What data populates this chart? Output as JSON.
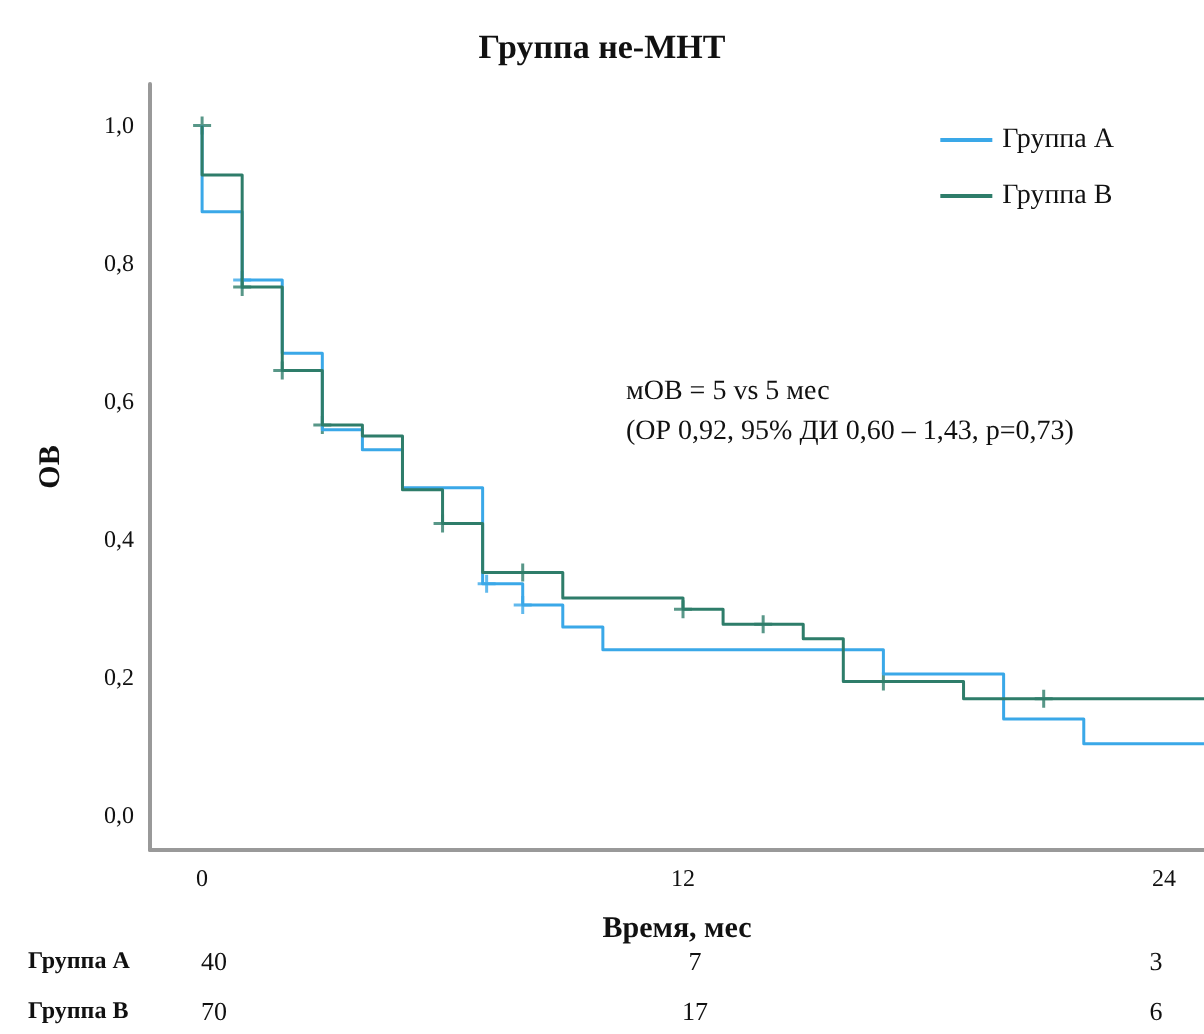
{
  "chart_data": {
    "type": "step",
    "title": "Группа не-МНТ",
    "xlabel": "Время, мес",
    "ylabel": "ОВ",
    "xlim": [
      -1.3,
      25
    ],
    "xticks": [
      0,
      12,
      24
    ],
    "ylim": [
      -0.05,
      1.06
    ],
    "yticks": [
      {
        "value": 0,
        "label": "0,0"
      },
      {
        "value": 0.2,
        "label": "0,2"
      },
      {
        "value": 0.4,
        "label": "0,4"
      },
      {
        "value": 0.6,
        "label": "0,6"
      },
      {
        "value": 0.8,
        "label": "0,8"
      },
      {
        "value": 1,
        "label": "1,0"
      }
    ],
    "legend": "top right",
    "grid": false,
    "line_style": "solid",
    "annotations": [
      "мОВ = 5 vs 5 мес\n(ОР 0,92, 95% ДИ 0,60 – 1,43, p=0,73)",
      "40",
      "7",
      "3",
      "70",
      "17",
      "6"
    ],
    "series": [
      {
        "name": "Группа A",
        "color": "#3aa8e8",
        "x": [
          0,
          0,
          1,
          2,
          3,
          4,
          5,
          7,
          8,
          9,
          10,
          17,
          20,
          22,
          25
        ],
        "values": [
          1.0,
          0.875,
          0.776,
          0.67,
          0.559,
          0.53,
          0.475,
          0.336,
          0.305,
          0.273,
          0.24,
          0.205,
          0.14,
          0.104,
          0.104
        ]
      },
      {
        "name": "Группа B",
        "color": "#2e7d6a",
        "x": [
          0,
          0,
          1,
          2,
          3,
          4,
          5,
          6,
          7,
          9,
          12,
          13,
          15,
          16,
          19,
          25
        ],
        "values": [
          1.0,
          0.928,
          0.766,
          0.645,
          0.566,
          0.55,
          0.472,
          0.423,
          0.352,
          0.315,
          0.299,
          0.277,
          0.256,
          0.194,
          0.169,
          0.169
        ]
      },
      {
        "type": "scatter",
        "marker": "cross",
        "color": "#3aa8e8",
        "x": [
          1,
          7.1,
          8
        ],
        "values": [
          0.776,
          0.336,
          0.305
        ]
      },
      {
        "type": "scatter",
        "marker": "cross",
        "color": "#2e7d6a",
        "x": [
          0,
          1,
          2,
          3,
          6,
          8,
          12,
          14,
          17,
          21
        ],
        "values": [
          1.0,
          0.766,
          0.645,
          0.566,
          0.423,
          0.352,
          0.299,
          0.277,
          0.194,
          0.169
        ]
      }
    ]
  }
}
